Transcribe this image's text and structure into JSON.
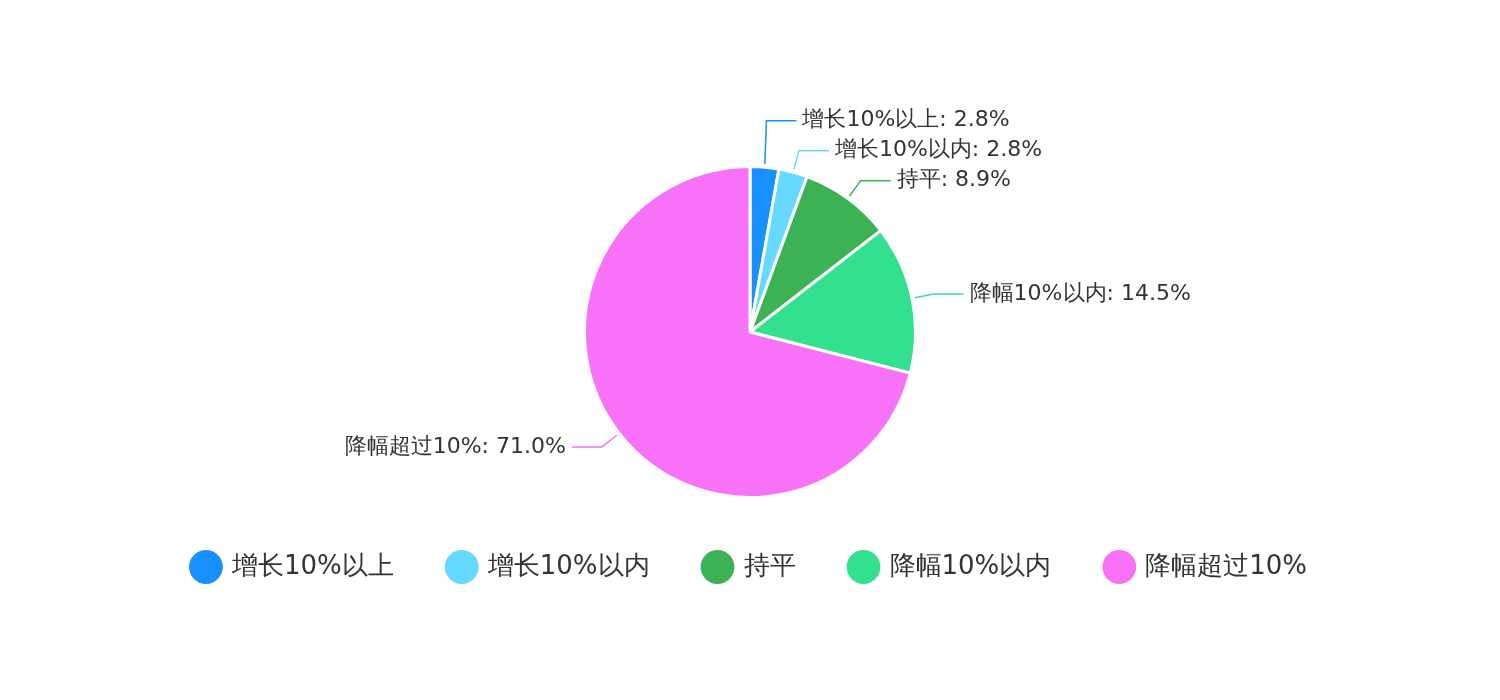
{
  "chart_data": {
    "type": "pie",
    "categories": [
      "增长10%以上",
      "增长10%以内",
      "持平",
      "降幅10%以内",
      "降幅超过10%"
    ],
    "values": [
      2.8,
      2.8,
      8.9,
      14.5,
      71.0
    ],
    "colors": [
      "#1890ff",
      "#66d9ff",
      "#3cb255",
      "#33e08f",
      "#f772f7"
    ],
    "value_labels": [
      "增长10%以上: 2.8%",
      "增长10%以内: 2.8%",
      "持平: 8.9%",
      "降幅10%以内: 14.5%",
      "降幅超过10%: 71.0%"
    ],
    "legend": "bottom"
  }
}
